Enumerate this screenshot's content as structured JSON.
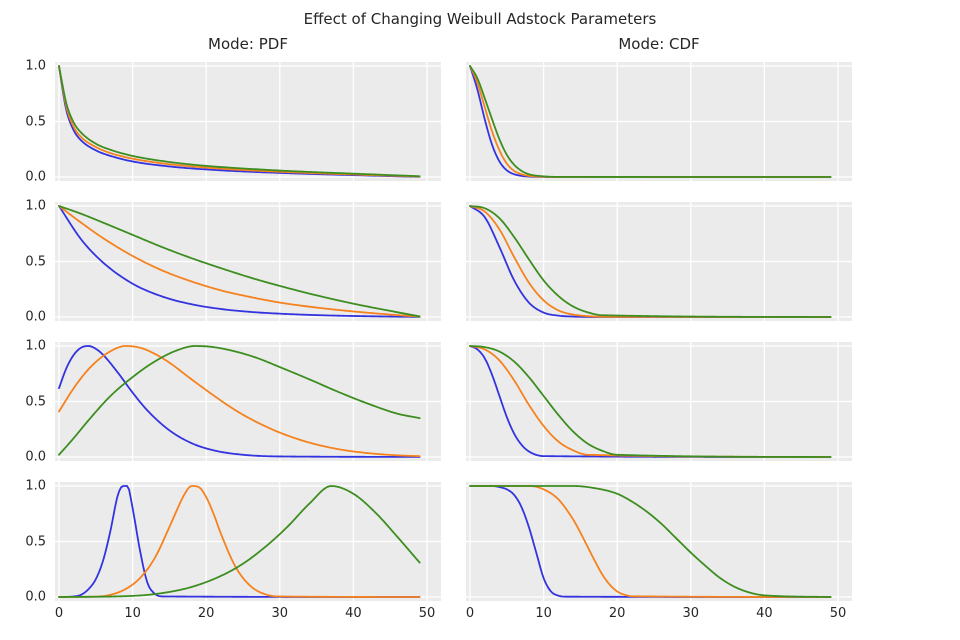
{
  "chart_data": {
    "type": "line",
    "title": "Effect of Changing Weibull Adstock Parameters",
    "columns": [
      "Mode: PDF",
      "Mode: CDF"
    ],
    "xlabel": "",
    "ylabel": "",
    "x_range": [
      0,
      49
    ],
    "ylim": [
      0,
      1
    ],
    "grid": true,
    "legend_position": "none",
    "xticks": [
      0,
      10,
      20,
      30,
      40,
      50
    ],
    "xtick_labels": [
      "0",
      "10",
      "20",
      "30",
      "40",
      "50"
    ],
    "yticks": [
      1.0,
      0.5,
      0.0
    ],
    "ytick_labels": [
      "1.0",
      "0.5",
      "0.0"
    ],
    "palette": {
      "blue": "#3333e0",
      "orange": "#f5821e",
      "green": "#3d8e20"
    },
    "panels": [
      {
        "row": 1,
        "col": "PDF",
        "series": [
          {
            "color": "blue",
            "x": [
              0,
              0.5,
              1,
              2,
              3,
              5,
              7,
              10,
              15,
              20,
              25,
              30,
              35,
              40,
              45,
              49
            ],
            "y": [
              1.0,
              0.78,
              0.6,
              0.42,
              0.33,
              0.24,
              0.19,
              0.14,
              0.095,
              0.068,
              0.05,
              0.037,
              0.026,
              0.017,
              0.008,
              0.002
            ]
          },
          {
            "color": "orange",
            "x": [
              0,
              0.5,
              1,
              2,
              3,
              5,
              7,
              10,
              15,
              20,
              25,
              30,
              35,
              40,
              45,
              49
            ],
            "y": [
              1.0,
              0.8,
              0.63,
              0.45,
              0.36,
              0.27,
              0.215,
              0.165,
              0.115,
              0.085,
              0.063,
              0.047,
              0.034,
              0.023,
              0.012,
              0.004
            ]
          },
          {
            "color": "green",
            "x": [
              0,
              0.5,
              1,
              2,
              3,
              5,
              7,
              10,
              15,
              20,
              25,
              30,
              35,
              40,
              45,
              49
            ],
            "y": [
              1.0,
              0.82,
              0.66,
              0.49,
              0.4,
              0.3,
              0.245,
              0.19,
              0.135,
              0.1,
              0.077,
              0.058,
              0.043,
              0.03,
              0.017,
              0.007
            ]
          }
        ]
      },
      {
        "row": 1,
        "col": "CDF",
        "series": [
          {
            "color": "blue",
            "x": [
              0,
              1,
              2,
              3,
              4,
              5,
              6,
              7,
              8,
              10,
              12,
              49
            ],
            "y": [
              1.0,
              0.79,
              0.52,
              0.29,
              0.14,
              0.06,
              0.025,
              0.01,
              0.004,
              0.001,
              0,
              0
            ]
          },
          {
            "color": "orange",
            "x": [
              0,
              1,
              2,
              3,
              4,
              5,
              6,
              7,
              8,
              10,
              12,
              49
            ],
            "y": [
              1.0,
              0.85,
              0.63,
              0.41,
              0.24,
              0.12,
              0.055,
              0.025,
              0.01,
              0.002,
              0,
              0
            ]
          },
          {
            "color": "green",
            "x": [
              0,
              1,
              2,
              3,
              4,
              5,
              6,
              7,
              8,
              10,
              12,
              49
            ],
            "y": [
              1.0,
              0.89,
              0.71,
              0.52,
              0.34,
              0.2,
              0.11,
              0.055,
              0.025,
              0.006,
              0.001,
              0
            ]
          }
        ]
      },
      {
        "row": 2,
        "col": "PDF",
        "series": [
          {
            "color": "blue",
            "x": [
              0,
              3,
              6,
              10,
              14,
              18,
              22,
              26,
              30,
              35,
              40,
              45,
              49
            ],
            "y": [
              1.0,
              0.7,
              0.49,
              0.3,
              0.185,
              0.115,
              0.072,
              0.046,
              0.03,
              0.017,
              0.009,
              0.004,
              0.001
            ]
          },
          {
            "color": "orange",
            "x": [
              0,
              3,
              6,
              10,
              14,
              18,
              22,
              26,
              30,
              35,
              40,
              45,
              49
            ],
            "y": [
              1.0,
              0.85,
              0.71,
              0.55,
              0.42,
              0.32,
              0.24,
              0.18,
              0.13,
              0.085,
              0.05,
              0.022,
              0.003
            ]
          },
          {
            "color": "green",
            "x": [
              0,
              3,
              6,
              10,
              14,
              18,
              22,
              26,
              30,
              35,
              40,
              45,
              49
            ],
            "y": [
              1.0,
              0.93,
              0.85,
              0.74,
              0.63,
              0.53,
              0.44,
              0.355,
              0.28,
              0.195,
              0.12,
              0.055,
              0.005
            ]
          }
        ]
      },
      {
        "row": 2,
        "col": "CDF",
        "series": [
          {
            "color": "blue",
            "x": [
              0,
              2,
              4,
              6,
              8,
              10,
              12,
              14,
              16,
              18,
              49
            ],
            "y": [
              1.0,
              0.9,
              0.63,
              0.33,
              0.13,
              0.04,
              0.012,
              0.004,
              0.001,
              0,
              0
            ]
          },
          {
            "color": "orange",
            "x": [
              0,
              2,
              4,
              6,
              8,
              10,
              12,
              14,
              16,
              18,
              49
            ],
            "y": [
              1.0,
              0.95,
              0.79,
              0.54,
              0.31,
              0.15,
              0.06,
              0.022,
              0.008,
              0.002,
              0
            ]
          },
          {
            "color": "green",
            "x": [
              0,
              2,
              4,
              6,
              8,
              10,
              12,
              14,
              16,
              18,
              49
            ],
            "y": [
              1.0,
              0.98,
              0.89,
              0.72,
              0.52,
              0.33,
              0.19,
              0.095,
              0.042,
              0.016,
              0
            ]
          }
        ]
      },
      {
        "row": 3,
        "col": "PDF",
        "series": [
          {
            "color": "blue",
            "x": [
              0,
              1,
              2,
              3,
              4,
              5,
              6,
              8,
              10,
              12,
              15,
              18,
              21,
              25,
              30,
              49
            ],
            "y": [
              0.62,
              0.8,
              0.92,
              0.985,
              1.0,
              0.975,
              0.92,
              0.76,
              0.58,
              0.42,
              0.24,
              0.125,
              0.06,
              0.02,
              0.005,
              0.001
            ]
          },
          {
            "color": "orange",
            "x": [
              0,
              2,
              4,
              6,
              8,
              9,
              11,
              13,
              15,
              18,
              21,
              24,
              27,
              30,
              34,
              38,
              42,
              46,
              49
            ],
            "y": [
              0.41,
              0.62,
              0.79,
              0.91,
              0.985,
              1.0,
              0.985,
              0.93,
              0.85,
              0.7,
              0.555,
              0.42,
              0.31,
              0.22,
              0.13,
              0.07,
              0.035,
              0.015,
              0.008
            ]
          },
          {
            "color": "green",
            "x": [
              0,
              2,
              4,
              7,
              10,
              13,
              16,
              18.5,
              21,
              24,
              27,
              30,
              34,
              38,
              42,
              46,
              49
            ],
            "y": [
              0.02,
              0.17,
              0.33,
              0.55,
              0.72,
              0.86,
              0.96,
              1.0,
              0.99,
              0.95,
              0.89,
              0.81,
              0.7,
              0.585,
              0.48,
              0.39,
              0.35
            ]
          }
        ]
      },
      {
        "row": 3,
        "col": "CDF",
        "series": [
          {
            "color": "blue",
            "x": [
              0,
              1,
              2,
              3,
              4,
              5,
              6,
              7,
              8,
              10,
              49
            ],
            "y": [
              1.0,
              0.97,
              0.89,
              0.74,
              0.55,
              0.36,
              0.21,
              0.11,
              0.05,
              0.008,
              0
            ]
          },
          {
            "color": "orange",
            "x": [
              0,
              2,
              4,
              6,
              8,
              10,
              12,
              14,
              16,
              49
            ],
            "y": [
              1.0,
              0.97,
              0.87,
              0.69,
              0.47,
              0.28,
              0.14,
              0.06,
              0.02,
              0
            ]
          },
          {
            "color": "green",
            "x": [
              0,
              2,
              4,
              6,
              8,
              10,
              12,
              14,
              16,
              18,
              20,
              49
            ],
            "y": [
              1.0,
              0.99,
              0.95,
              0.86,
              0.72,
              0.55,
              0.38,
              0.23,
              0.12,
              0.055,
              0.02,
              0
            ]
          }
        ]
      },
      {
        "row": 4,
        "col": "PDF",
        "series": [
          {
            "color": "blue",
            "x": [
              0,
              2,
              3,
              4,
              5,
              6,
              7,
              8,
              8.7,
              9.3,
              10,
              11,
              12,
              13,
              14,
              49
            ],
            "y": [
              0,
              0.005,
              0.02,
              0.07,
              0.16,
              0.33,
              0.6,
              0.92,
              1.0,
              1.0,
              0.8,
              0.42,
              0.13,
              0.03,
              0.005,
              0
            ]
          },
          {
            "color": "orange",
            "x": [
              0,
              5,
              7,
              9,
              11,
              13,
              15,
              16,
              17,
              18,
              19,
              20,
              21,
              22,
              24,
              26,
              28,
              30,
              49
            ],
            "y": [
              0,
              0.003,
              0.02,
              0.07,
              0.17,
              0.35,
              0.63,
              0.78,
              0.92,
              1.0,
              0.99,
              0.9,
              0.75,
              0.57,
              0.27,
              0.1,
              0.025,
              0.005,
              0
            ]
          },
          {
            "color": "green",
            "x": [
              0,
              10,
              14,
              18,
              22,
              25,
              28,
              31,
              34,
              37,
              40,
              43,
              46,
              49
            ],
            "y": [
              0,
              0.01,
              0.035,
              0.09,
              0.19,
              0.3,
              0.45,
              0.63,
              0.84,
              1.0,
              0.93,
              0.76,
              0.54,
              0.31
            ]
          }
        ]
      },
      {
        "row": 4,
        "col": "CDF",
        "series": [
          {
            "color": "blue",
            "x": [
              0,
              3,
              4,
              5,
              6,
              7,
              8,
              9,
              10,
              11,
              12,
              13,
              49
            ],
            "y": [
              1.0,
              1.0,
              0.99,
              0.97,
              0.92,
              0.81,
              0.63,
              0.4,
              0.17,
              0.05,
              0.012,
              0.003,
              0
            ]
          },
          {
            "color": "orange",
            "x": [
              0,
              8,
              10,
              12,
              14,
              15,
              16,
              17,
              18,
              19,
              20,
              21,
              22,
              49
            ],
            "y": [
              1.0,
              1.0,
              0.97,
              0.88,
              0.7,
              0.58,
              0.45,
              0.32,
              0.2,
              0.11,
              0.05,
              0.02,
              0.007,
              0
            ]
          },
          {
            "color": "green",
            "x": [
              0,
              14,
              17,
              20,
              22,
              24,
              26,
              28,
              30,
              32,
              34,
              36,
              38,
              40,
              49
            ],
            "y": [
              1.0,
              1.0,
              0.98,
              0.93,
              0.86,
              0.77,
              0.66,
              0.53,
              0.4,
              0.28,
              0.17,
              0.09,
              0.04,
              0.015,
              0
            ]
          }
        ]
      }
    ]
  }
}
